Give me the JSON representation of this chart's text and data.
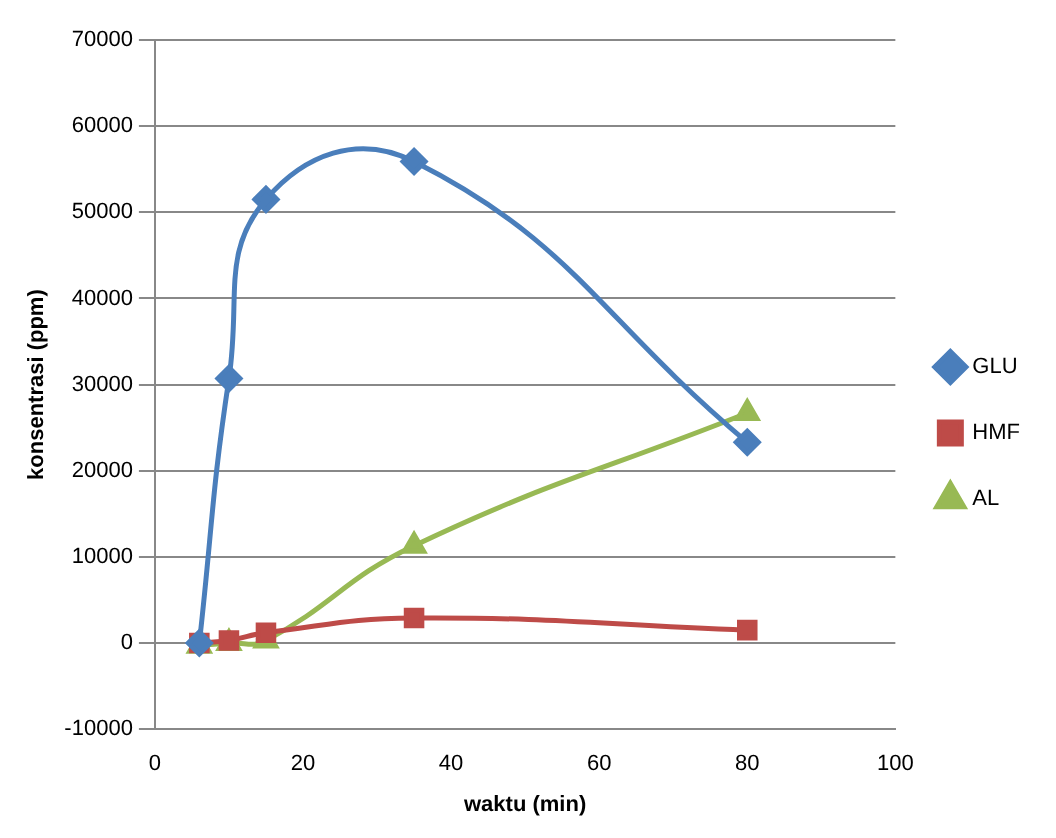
{
  "chart_data": {
    "type": "line",
    "xlabel": "waktu (min)",
    "ylabel": "konsentrasi (ppm)",
    "xlim": [
      0,
      100
    ],
    "xticks": [
      0,
      20,
      40,
      60,
      80,
      100
    ],
    "ylim": [
      -10000,
      70000
    ],
    "yticks": [
      -10000,
      0,
      10000,
      20000,
      30000,
      40000,
      50000,
      60000,
      70000
    ],
    "grid": "y",
    "legend": "right",
    "line_style": "solid",
    "series": [
      {
        "name": "GLU",
        "color": "#4a7ebb",
        "marker": "diamond",
        "x": [
          6,
          10,
          15,
          35,
          80
        ],
        "values": [
          0,
          30700,
          51500,
          55900,
          23300
        ]
      },
      {
        "name": "HMF",
        "color": "#be4b48",
        "marker": "square",
        "x": [
          6,
          10,
          15,
          35,
          80
        ],
        "values": [
          0,
          300,
          1200,
          2900,
          1500
        ]
      },
      {
        "name": "AL",
        "color": "#98b954",
        "marker": "triangle",
        "x": [
          6,
          10,
          15,
          35,
          80
        ],
        "values": [
          -300,
          0,
          300,
          11300,
          26700
        ]
      }
    ]
  }
}
